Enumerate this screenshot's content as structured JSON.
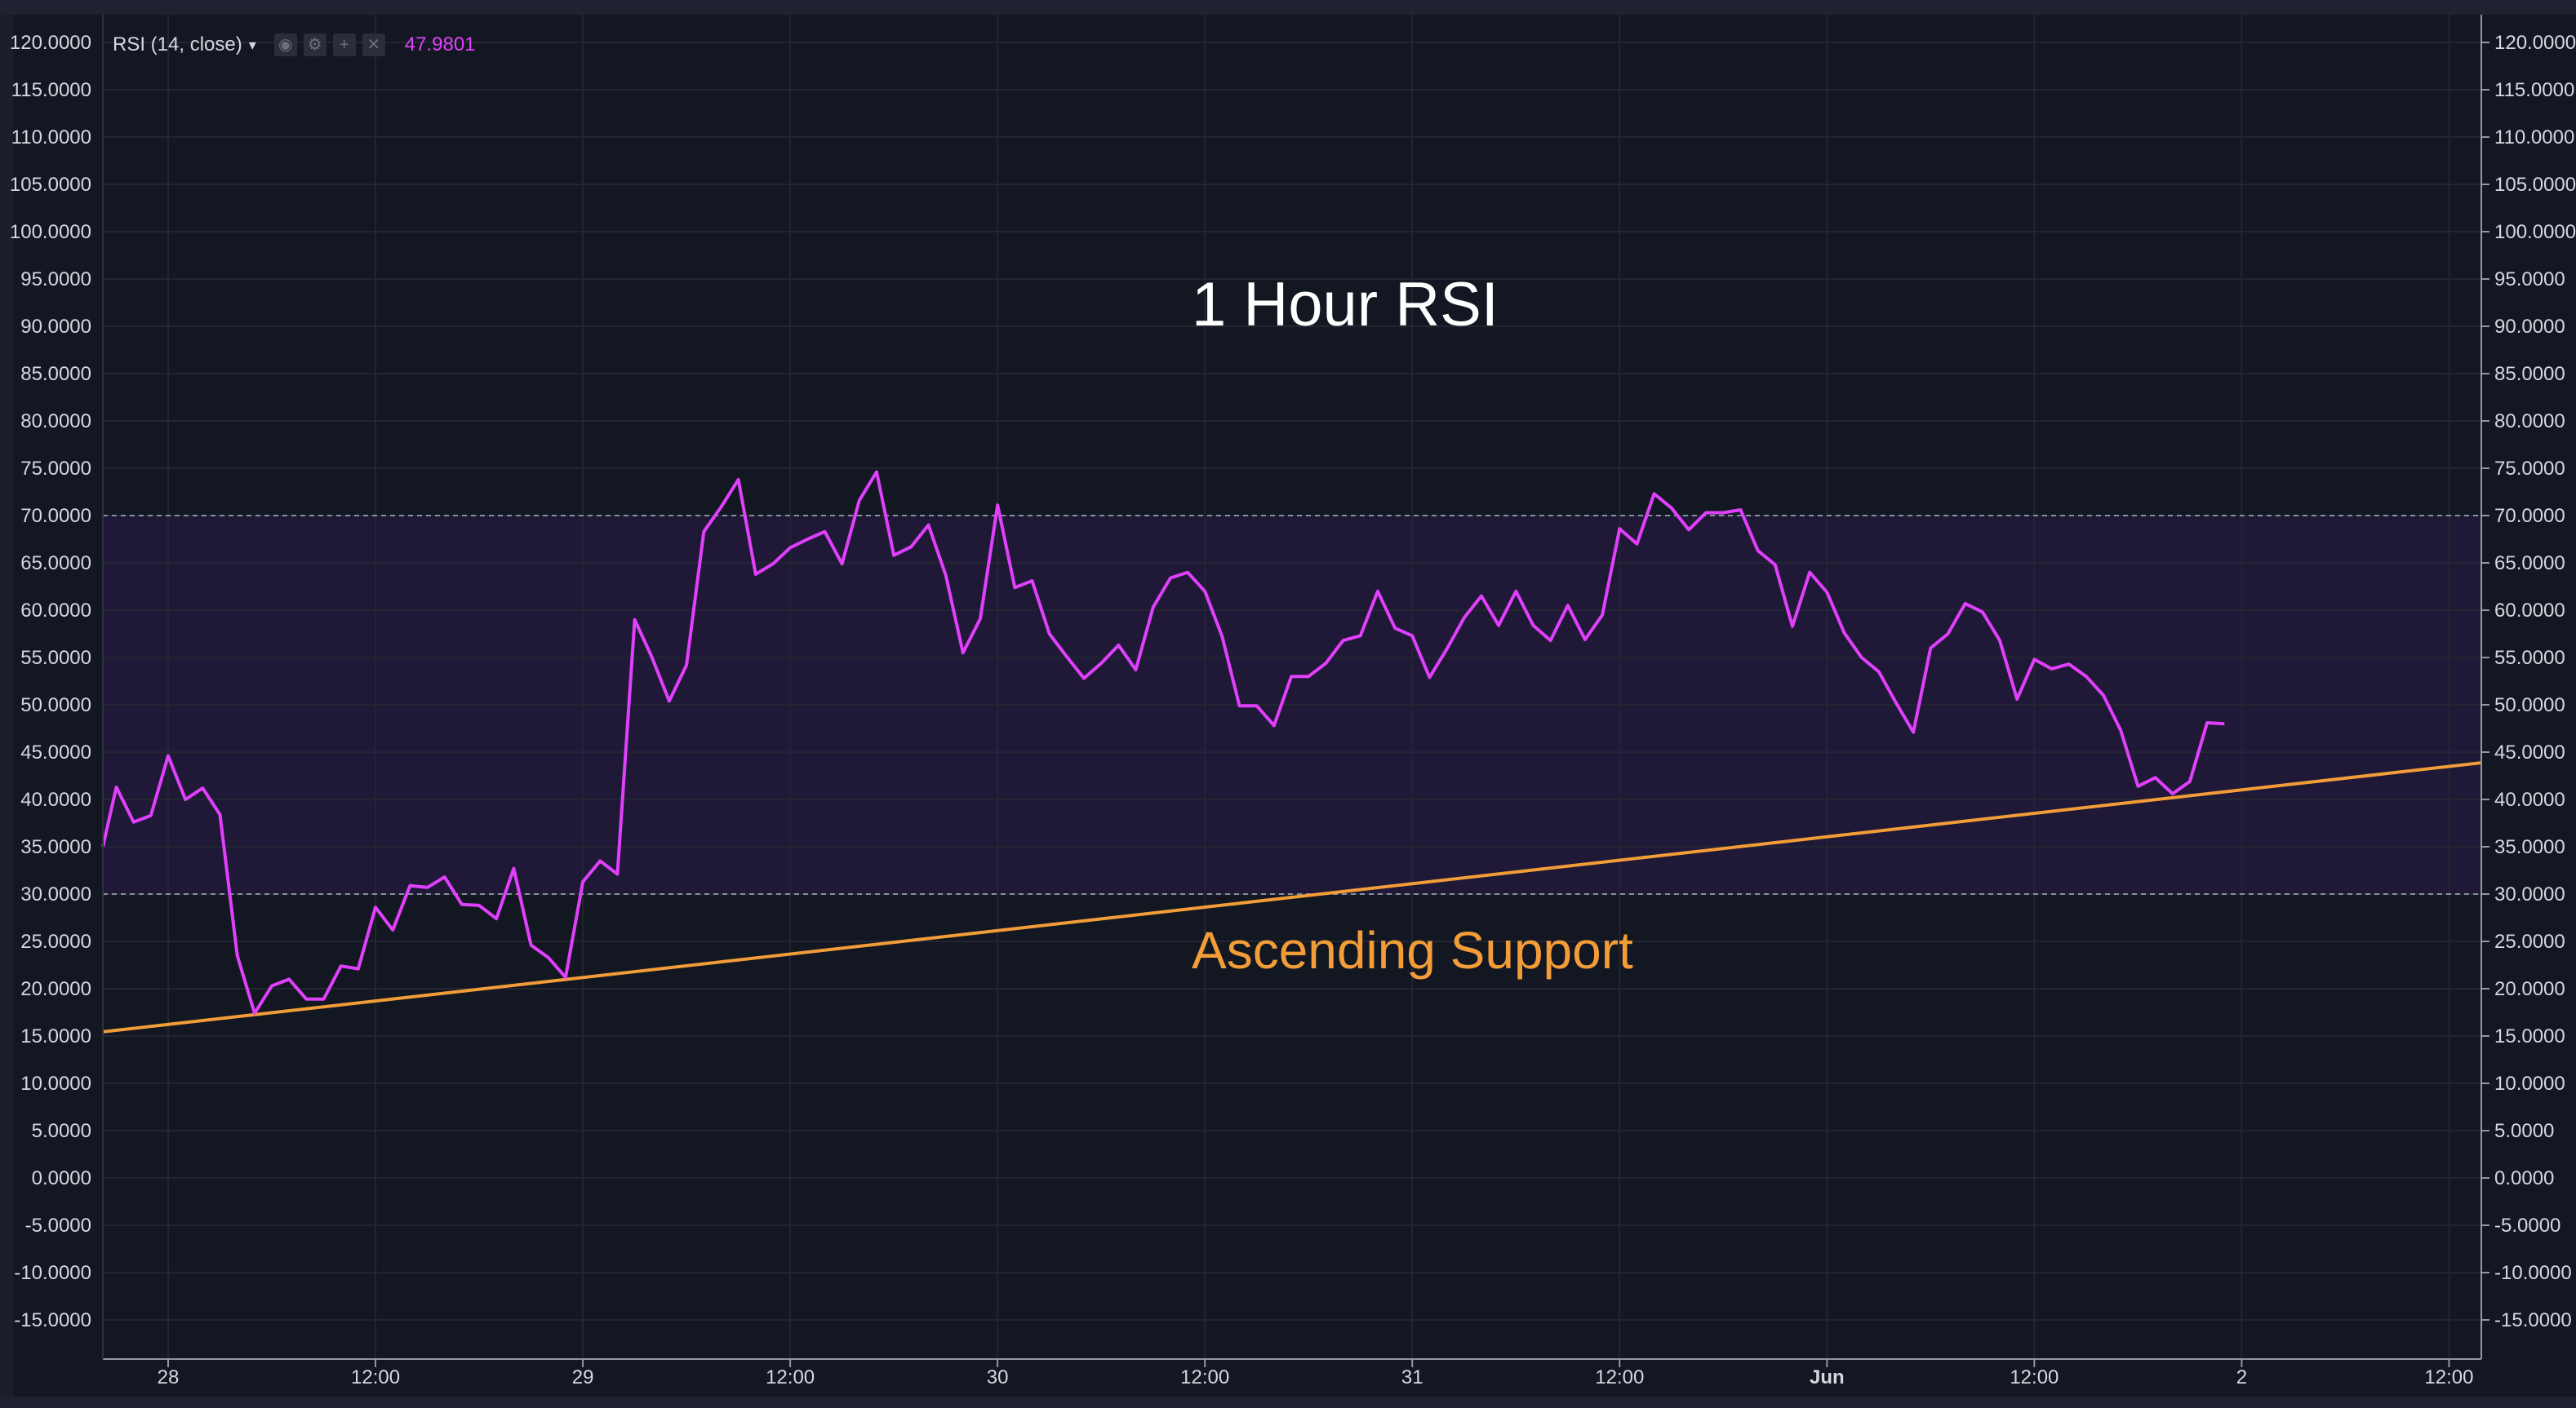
{
  "indicator": {
    "name": "RSI (14, close)",
    "value": "47.9801",
    "buttons": [
      "eye-icon",
      "gear-icon",
      "plus-icon",
      "close-icon"
    ]
  },
  "annotations": {
    "title": "1 Hour RSI",
    "support_label": "Ascending Support"
  },
  "colors": {
    "background": "#131722",
    "rsi_line": "#e040fb",
    "support_line": "#f29d38",
    "band_fill": "#1f1836",
    "grid": "#232632",
    "title_text": "#ffffff"
  },
  "chart_data": {
    "type": "line",
    "title": "1 Hour RSI",
    "ylabel": "",
    "xlabel": "",
    "ylim": [
      -17.5,
      122.5
    ],
    "grid": true,
    "y_ticks": [
      "120.0000",
      "115.0000",
      "110.0000",
      "105.0000",
      "100.0000",
      "95.0000",
      "90.0000",
      "85.0000",
      "80.0000",
      "75.0000",
      "70.0000",
      "65.0000",
      "60.0000",
      "55.0000",
      "50.0000",
      "45.0000",
      "40.0000",
      "35.0000",
      "30.0000",
      "25.0000",
      "20.0000",
      "15.0000",
      "10.0000",
      "5.0000",
      "0.0000",
      "-5.0000",
      "-10.0000",
      "-15.0000"
    ],
    "x_ticks": [
      {
        "label": "28",
        "hour": 0
      },
      {
        "label": "12:00",
        "hour": 12
      },
      {
        "label": "29",
        "hour": 24
      },
      {
        "label": "12:00",
        "hour": 36
      },
      {
        "label": "30",
        "hour": 48
      },
      {
        "label": "12:00",
        "hour": 60
      },
      {
        "label": "31",
        "hour": 72
      },
      {
        "label": "12:00",
        "hour": 84
      },
      {
        "label": "Jun",
        "hour": 96
      },
      {
        "label": "12:00",
        "hour": 108
      },
      {
        "label": "2",
        "hour": 120
      },
      {
        "label": "12:00",
        "hour": 132
      }
    ],
    "bands": [
      {
        "from": 30,
        "to": 70
      }
    ],
    "series": [
      {
        "kind": "rsi",
        "hour_start": -4,
        "hour_step": 1,
        "values": [
          35,
          41.3,
          37.6,
          38.3,
          44.6,
          40,
          41.2,
          38.4,
          23.5,
          17.4,
          20.3,
          21,
          18.9,
          18.9,
          22.4,
          22.1,
          28.6,
          26.2,
          30.9,
          30.7,
          31.8,
          28.9,
          28.8,
          27.4,
          32.7,
          24.6,
          23.3,
          21.2,
          31.3,
          33.5,
          32.1,
          59,
          55,
          50.4,
          54.2,
          68.3,
          70.9,
          73.8,
          63.8,
          64.9,
          66.6,
          67.5,
          68.3,
          64.9,
          71.6,
          74.6,
          65.8,
          66.7,
          69,
          63.7,
          55.5,
          59.1,
          71.1,
          62.4,
          63.1,
          57.5,
          55.1,
          52.8,
          54.4,
          56.3,
          53.7,
          60.3,
          63.4,
          64,
          62,
          57.2,
          49.9,
          49.9,
          47.8,
          53,
          53,
          54.4,
          56.8,
          57.3,
          62,
          58.1,
          57.3,
          52.9,
          55.9,
          59.2,
          61.5,
          58.4,
          62,
          58.4,
          56.8,
          60.5,
          56.9,
          59.5,
          68.6,
          67,
          72.3,
          70.8,
          68.5,
          70.3,
          70.3,
          70.6,
          66.3,
          64.8,
          58.3,
          64,
          61.9,
          57.6,
          55,
          53.5,
          50.2,
          47.1,
          56,
          57.5,
          60.7,
          59.8,
          56.8,
          50.6,
          54.8,
          53.8,
          54.3,
          53,
          51,
          47.3,
          41.4,
          42.3,
          40.6,
          41.9,
          48.1,
          48
        ]
      },
      {
        "kind": "support",
        "points": [
          {
            "hour": -4,
            "value": 15.4
          },
          {
            "hour": 134,
            "value": 43.9
          }
        ]
      }
    ]
  }
}
